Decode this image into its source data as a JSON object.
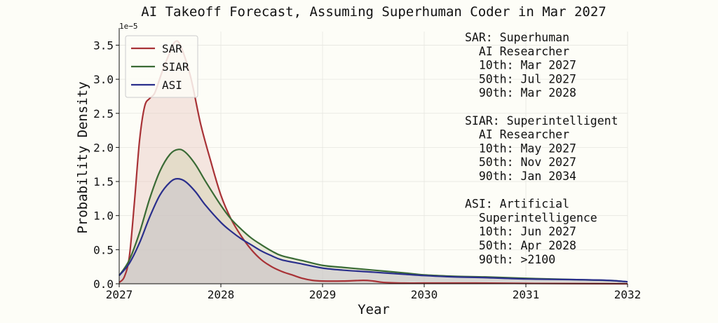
{
  "chart_data": {
    "type": "area",
    "title": "AI Takeoff Forecast, Assuming Superhuman Coder in Mar 2027",
    "xlabel": "Year",
    "ylabel": "Probability Density",
    "y_exponent_label": "1e−5",
    "xlim": [
      2027,
      2032
    ],
    "ylim": [
      0,
      3.7
    ],
    "y_scale_note": "values in units of 1e-5",
    "x_ticks": [
      2027,
      2028,
      2029,
      2030,
      2031,
      2032
    ],
    "x_tick_labels": [
      "2027",
      "2028",
      "2029",
      "2030",
      "2031",
      "2032"
    ],
    "y_ticks": [
      0,
      0.5,
      1.0,
      1.5,
      2.0,
      2.5,
      3.0,
      3.5
    ],
    "y_tick_labels": [
      "0.0",
      "0.5",
      "1.0",
      "1.5",
      "2.0",
      "2.5",
      "3.0",
      "3.5"
    ],
    "grid": true,
    "legend_position": "top-left",
    "series": [
      {
        "name": "SAR",
        "color": "#a83236",
        "fill": "#e8c8c0",
        "points": [
          [
            2027.0,
            0.02
          ],
          [
            2027.05,
            0.1
          ],
          [
            2027.1,
            0.4
          ],
          [
            2027.15,
            1.2
          ],
          [
            2027.2,
            2.1
          ],
          [
            2027.25,
            2.6
          ],
          [
            2027.3,
            2.72
          ],
          [
            2027.35,
            2.8
          ],
          [
            2027.42,
            3.1
          ],
          [
            2027.5,
            3.4
          ],
          [
            2027.55,
            3.55
          ],
          [
            2027.6,
            3.5
          ],
          [
            2027.7,
            3.05
          ],
          [
            2027.8,
            2.35
          ],
          [
            2027.9,
            1.8
          ],
          [
            2028.0,
            1.3
          ],
          [
            2028.1,
            0.95
          ],
          [
            2028.2,
            0.7
          ],
          [
            2028.3,
            0.5
          ],
          [
            2028.4,
            0.35
          ],
          [
            2028.5,
            0.25
          ],
          [
            2028.6,
            0.18
          ],
          [
            2028.7,
            0.13
          ],
          [
            2028.8,
            0.08
          ],
          [
            2028.9,
            0.05
          ],
          [
            2029.0,
            0.04
          ],
          [
            2029.2,
            0.04
          ],
          [
            2029.4,
            0.05
          ],
          [
            2029.5,
            0.04
          ],
          [
            2029.6,
            0.02
          ],
          [
            2029.8,
            0.01
          ],
          [
            2030.0,
            0.01
          ],
          [
            2030.5,
            0.01
          ],
          [
            2031.0,
            0.005
          ],
          [
            2032.0,
            0.0
          ]
        ]
      },
      {
        "name": "SIAR",
        "color": "#3a6b35",
        "fill": "#d0d0b0",
        "points": [
          [
            2027.0,
            0.12
          ],
          [
            2027.1,
            0.35
          ],
          [
            2027.2,
            0.75
          ],
          [
            2027.3,
            1.25
          ],
          [
            2027.4,
            1.65
          ],
          [
            2027.5,
            1.9
          ],
          [
            2027.58,
            1.97
          ],
          [
            2027.65,
            1.93
          ],
          [
            2027.75,
            1.75
          ],
          [
            2027.85,
            1.5
          ],
          [
            2028.0,
            1.15
          ],
          [
            2028.1,
            0.95
          ],
          [
            2028.2,
            0.8
          ],
          [
            2028.3,
            0.67
          ],
          [
            2028.4,
            0.57
          ],
          [
            2028.5,
            0.48
          ],
          [
            2028.6,
            0.41
          ],
          [
            2028.8,
            0.34
          ],
          [
            2029.0,
            0.27
          ],
          [
            2029.2,
            0.24
          ],
          [
            2029.5,
            0.2
          ],
          [
            2029.8,
            0.16
          ],
          [
            2030.0,
            0.13
          ],
          [
            2030.3,
            0.11
          ],
          [
            2030.6,
            0.1
          ],
          [
            2031.0,
            0.08
          ],
          [
            2031.5,
            0.06
          ],
          [
            2031.8,
            0.05
          ],
          [
            2032.0,
            0.03
          ]
        ]
      },
      {
        "name": "ASI",
        "color": "#2a2f8c",
        "fill": "#c4bfcf",
        "points": [
          [
            2027.0,
            0.12
          ],
          [
            2027.1,
            0.3
          ],
          [
            2027.2,
            0.6
          ],
          [
            2027.3,
            0.98
          ],
          [
            2027.4,
            1.3
          ],
          [
            2027.5,
            1.49
          ],
          [
            2027.57,
            1.54
          ],
          [
            2027.65,
            1.5
          ],
          [
            2027.75,
            1.35
          ],
          [
            2027.85,
            1.15
          ],
          [
            2028.0,
            0.9
          ],
          [
            2028.1,
            0.77
          ],
          [
            2028.2,
            0.66
          ],
          [
            2028.3,
            0.57
          ],
          [
            2028.4,
            0.48
          ],
          [
            2028.5,
            0.41
          ],
          [
            2028.6,
            0.35
          ],
          [
            2028.8,
            0.29
          ],
          [
            2029.0,
            0.23
          ],
          [
            2029.2,
            0.2
          ],
          [
            2029.5,
            0.17
          ],
          [
            2029.8,
            0.14
          ],
          [
            2030.0,
            0.12
          ],
          [
            2030.3,
            0.1
          ],
          [
            2030.6,
            0.09
          ],
          [
            2031.0,
            0.07
          ],
          [
            2031.5,
            0.06
          ],
          [
            2031.8,
            0.05
          ],
          [
            2032.0,
            0.03
          ]
        ]
      }
    ],
    "annotations": [
      [
        "SAR: Superhuman",
        "  AI Researcher",
        "  10th: Mar 2027",
        "  50th: Jul 2027",
        "  90th: Mar 2028"
      ],
      [
        "SIAR: Superintelligent",
        "  AI Researcher",
        "  10th: May 2027",
        "  50th: Nov 2027",
        "  90th: Jan 2034"
      ],
      [
        "ASI: Artificial",
        "  Superintelligence",
        "  10th: Jun 2027",
        "  50th: Apr 2028",
        "  90th: >2100"
      ]
    ]
  }
}
